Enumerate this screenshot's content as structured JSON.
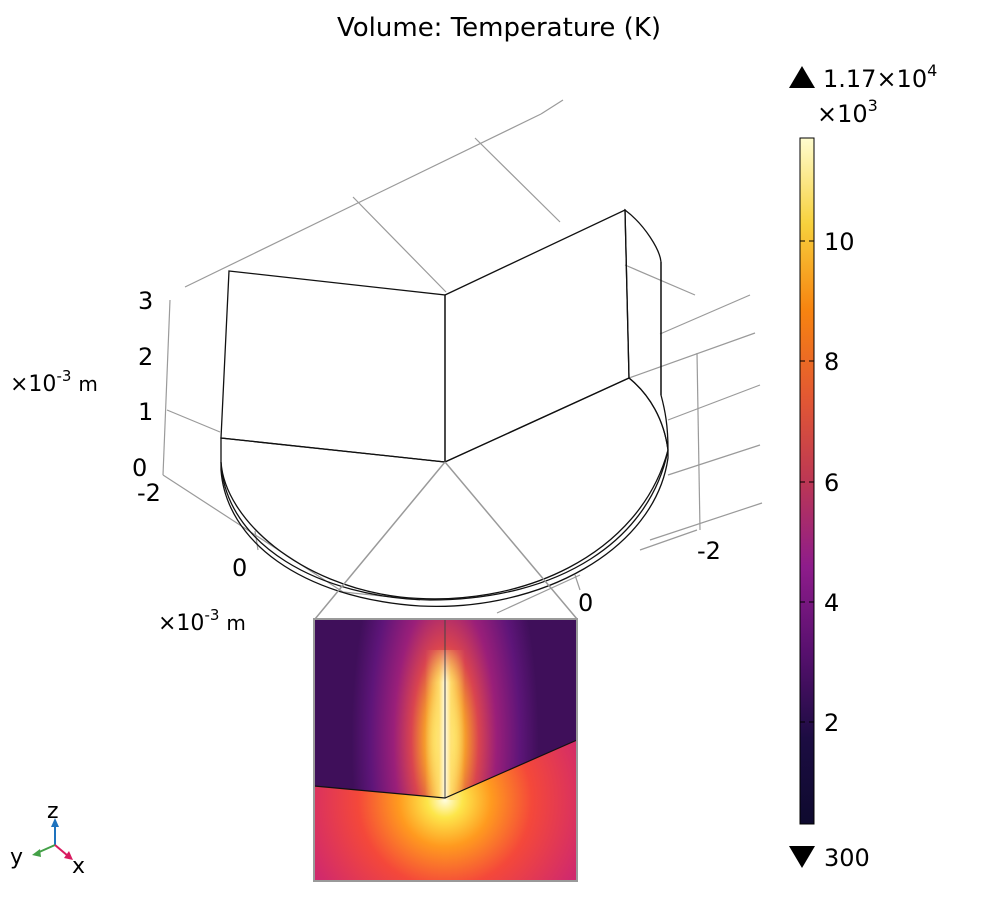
{
  "plot": {
    "title": "Volume: Temperature (K)",
    "z_ticks": [
      "3",
      "2",
      "1",
      "0"
    ],
    "z_unit": {
      "base": "×10",
      "exp": "-3",
      "unit": "m"
    },
    "y_ticks": [
      "-2",
      "0"
    ],
    "y_unit": {
      "base": "×10",
      "exp": "-3",
      "unit": "m"
    },
    "x_ticks": [
      "-2",
      "0"
    ]
  },
  "colorbar": {
    "max_label": {
      "base": "1.17×10",
      "exp": "4"
    },
    "multiplier": {
      "base": "×10",
      "exp": "3"
    },
    "ticks": [
      "10",
      "8",
      "6",
      "4",
      "2"
    ],
    "min_label": "300",
    "colormap": [
      "#fffdcf",
      "#f7d13d",
      "#f78410",
      "#e35932",
      "#bc3754",
      "#8e1c8b",
      "#57106e",
      "#1c0c42",
      "#0e0a2e"
    ]
  },
  "triad": {
    "x": "x",
    "y": "y",
    "z": "z"
  },
  "colors": {
    "wall_left": "#170d48",
    "wall_right": "#1b0e54",
    "top_face": "#1f0c5e",
    "side_face": "#1a0c56",
    "axis_x": "#d81b60",
    "axis_y": "#43a047",
    "axis_z": "#1e73be"
  }
}
